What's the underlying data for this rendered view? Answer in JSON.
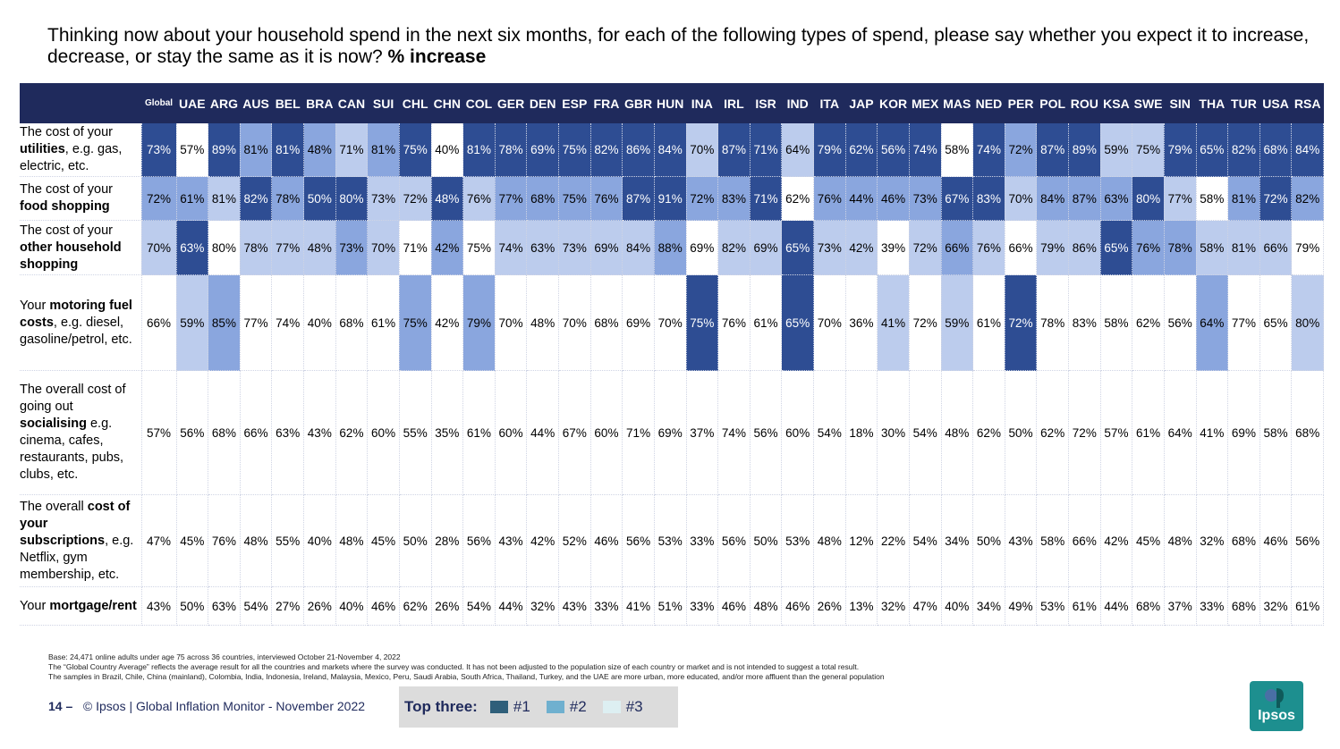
{
  "title": {
    "text": "Thinking now about your household spend in the next six months, for each of the following types of spend, please say whether you expect it to increase, decrease, or stay the same as it is now?",
    "emphasis": "% increase"
  },
  "colors": {
    "header_bg": "#1f2a5c",
    "rank1": "#2e4d93",
    "rank2": "#8aa6de",
    "rank3": "#bccced",
    "legend_rank1": "#2f5f7a",
    "legend_rank2": "#6fb0cf",
    "legend_rank3": "#ddeff2"
  },
  "columns": [
    "Global",
    "UAE",
    "ARG",
    "AUS",
    "BEL",
    "BRA",
    "CAN",
    "SUI",
    "CHL",
    "CHN",
    "COL",
    "GER",
    "DEN",
    "ESP",
    "FRA",
    "GBR",
    "HUN",
    "INA",
    "IRL",
    "ISR",
    "IND",
    "ITA",
    "JAP",
    "KOR",
    "MEX",
    "MAS",
    "NED",
    "PER",
    "POL",
    "ROU",
    "KSA",
    "SWE",
    "SIN",
    "THA",
    "TUR",
    "USA",
    "RSA"
  ],
  "rows": [
    {
      "id": "util",
      "label_parts": [
        {
          "t": "The cost of your ",
          "b": false
        },
        {
          "t": "utilities",
          "b": true
        },
        {
          "t": ", e.g. gas, electric, etc.",
          "b": false
        }
      ],
      "values": [
        "73%",
        "57%",
        "89%",
        "81%",
        "81%",
        "48%",
        "71%",
        "81%",
        "75%",
        "40%",
        "81%",
        "78%",
        "69%",
        "75%",
        "82%",
        "86%",
        "84%",
        "70%",
        "87%",
        "71%",
        "64%",
        "79%",
        "62%",
        "56%",
        "74%",
        "58%",
        "74%",
        "72%",
        "87%",
        "89%",
        "59%",
        "75%",
        "79%",
        "65%",
        "82%",
        "68%",
        "84%"
      ],
      "ranks": [
        1,
        0,
        1,
        2,
        1,
        2,
        3,
        2,
        1,
        0,
        1,
        1,
        1,
        1,
        1,
        1,
        1,
        3,
        1,
        1,
        3,
        1,
        1,
        1,
        1,
        0,
        1,
        2,
        1,
        1,
        3,
        3,
        1,
        1,
        1,
        1,
        1
      ]
    },
    {
      "id": "food",
      "label_parts": [
        {
          "t": "The cost of your ",
          "b": false
        },
        {
          "t": "food shopping",
          "b": true
        }
      ],
      "values": [
        "72%",
        "61%",
        "81%",
        "82%",
        "78%",
        "50%",
        "80%",
        "73%",
        "72%",
        "48%",
        "76%",
        "77%",
        "68%",
        "75%",
        "76%",
        "87%",
        "91%",
        "72%",
        "83%",
        "71%",
        "62%",
        "76%",
        "44%",
        "46%",
        "73%",
        "67%",
        "83%",
        "70%",
        "84%",
        "87%",
        "63%",
        "80%",
        "77%",
        "58%",
        "81%",
        "72%",
        "82%"
      ],
      "ranks": [
        2,
        2,
        3,
        1,
        2,
        1,
        1,
        3,
        3,
        1,
        3,
        2,
        2,
        2,
        2,
        1,
        1,
        2,
        2,
        1,
        0,
        2,
        2,
        2,
        2,
        1,
        1,
        3,
        2,
        2,
        2,
        1,
        3,
        0,
        2,
        1,
        2
      ]
    },
    {
      "id": "other",
      "label_parts": [
        {
          "t": "The cost of your ",
          "b": false
        },
        {
          "t": "other household shopping",
          "b": true
        }
      ],
      "values": [
        "70%",
        "63%",
        "80%",
        "78%",
        "77%",
        "48%",
        "73%",
        "70%",
        "71%",
        "42%",
        "75%",
        "74%",
        "63%",
        "73%",
        "69%",
        "84%",
        "88%",
        "69%",
        "82%",
        "69%",
        "65%",
        "73%",
        "42%",
        "39%",
        "72%",
        "66%",
        "76%",
        "66%",
        "79%",
        "86%",
        "65%",
        "76%",
        "78%",
        "58%",
        "81%",
        "66%",
        "79%"
      ],
      "ranks": [
        3,
        1,
        0,
        3,
        3,
        3,
        2,
        3,
        0,
        2,
        0,
        3,
        3,
        3,
        3,
        3,
        2,
        0,
        3,
        3,
        1,
        3,
        3,
        0,
        3,
        2,
        3,
        0,
        3,
        3,
        1,
        2,
        2,
        3,
        3,
        3,
        0
      ]
    },
    {
      "id": "motor",
      "label_parts": [
        {
          "t": "Your ",
          "b": false
        },
        {
          "t": "motoring fuel costs",
          "b": true
        },
        {
          "t": ", e.g. diesel, gasoline/petrol, etc.",
          "b": false
        }
      ],
      "values": [
        "66%",
        "59%",
        "85%",
        "77%",
        "74%",
        "40%",
        "68%",
        "61%",
        "75%",
        "42%",
        "79%",
        "70%",
        "48%",
        "70%",
        "68%",
        "69%",
        "70%",
        "75%",
        "76%",
        "61%",
        "65%",
        "70%",
        "36%",
        "41%",
        "72%",
        "59%",
        "61%",
        "72%",
        "78%",
        "83%",
        "58%",
        "62%",
        "56%",
        "64%",
        "77%",
        "65%",
        "80%"
      ],
      "ranks": [
        0,
        3,
        2,
        0,
        0,
        0,
        0,
        0,
        2,
        0,
        2,
        0,
        0,
        0,
        0,
        0,
        0,
        1,
        0,
        0,
        1,
        0,
        0,
        3,
        0,
        3,
        0,
        1,
        0,
        0,
        0,
        0,
        0,
        2,
        0,
        0,
        3
      ]
    },
    {
      "id": "social",
      "label_parts": [
        {
          "t": "The overall cost of going out ",
          "b": false
        },
        {
          "t": "socialising",
          "b": true
        },
        {
          "t": " e.g. cinema, cafes, restaurants, pubs, clubs, etc.",
          "b": false
        }
      ],
      "values": [
        "57%",
        "56%",
        "68%",
        "66%",
        "63%",
        "43%",
        "62%",
        "60%",
        "55%",
        "35%",
        "61%",
        "60%",
        "44%",
        "67%",
        "60%",
        "71%",
        "69%",
        "37%",
        "74%",
        "56%",
        "60%",
        "54%",
        "18%",
        "30%",
        "54%",
        "48%",
        "62%",
        "50%",
        "62%",
        "72%",
        "57%",
        "61%",
        "64%",
        "41%",
        "69%",
        "58%",
        "68%"
      ],
      "ranks": [
        0,
        0,
        0,
        0,
        0,
        0,
        0,
        0,
        0,
        0,
        0,
        0,
        0,
        0,
        0,
        0,
        0,
        0,
        0,
        0,
        0,
        0,
        0,
        0,
        0,
        0,
        0,
        0,
        0,
        0,
        0,
        0,
        0,
        0,
        0,
        0,
        0
      ]
    },
    {
      "id": "subs",
      "label_parts": [
        {
          "t": "The overall ",
          "b": false
        },
        {
          "t": "cost of your subscriptions",
          "b": true
        },
        {
          "t": ", e.g. Netflix, gym membership, etc.",
          "b": false
        }
      ],
      "values": [
        "47%",
        "45%",
        "76%",
        "48%",
        "55%",
        "40%",
        "48%",
        "45%",
        "50%",
        "28%",
        "56%",
        "43%",
        "42%",
        "52%",
        "46%",
        "56%",
        "53%",
        "33%",
        "56%",
        "50%",
        "53%",
        "48%",
        "12%",
        "22%",
        "54%",
        "34%",
        "50%",
        "43%",
        "58%",
        "66%",
        "42%",
        "45%",
        "48%",
        "32%",
        "68%",
        "46%",
        "56%"
      ],
      "ranks": [
        0,
        0,
        0,
        0,
        0,
        0,
        0,
        0,
        0,
        0,
        0,
        0,
        0,
        0,
        0,
        0,
        0,
        0,
        0,
        0,
        0,
        0,
        0,
        0,
        0,
        0,
        0,
        0,
        0,
        0,
        0,
        0,
        0,
        0,
        0,
        0,
        0
      ]
    },
    {
      "id": "mort",
      "label_parts": [
        {
          "t": "Your ",
          "b": false
        },
        {
          "t": "mortgage/rent",
          "b": true
        }
      ],
      "values": [
        "43%",
        "50%",
        "63%",
        "54%",
        "27%",
        "26%",
        "40%",
        "46%",
        "62%",
        "26%",
        "54%",
        "44%",
        "32%",
        "43%",
        "33%",
        "41%",
        "51%",
        "33%",
        "46%",
        "48%",
        "46%",
        "26%",
        "13%",
        "32%",
        "47%",
        "40%",
        "34%",
        "49%",
        "53%",
        "61%",
        "44%",
        "68%",
        "37%",
        "33%",
        "68%",
        "32%",
        "61%"
      ],
      "ranks": [
        0,
        0,
        0,
        0,
        0,
        0,
        0,
        0,
        0,
        0,
        0,
        0,
        0,
        0,
        0,
        0,
        0,
        0,
        0,
        0,
        0,
        0,
        0,
        0,
        0,
        0,
        0,
        0,
        0,
        0,
        0,
        0,
        0,
        0,
        0,
        0,
        0
      ]
    }
  ],
  "footnotes": [
    "Base: 24,471 online adults under age 75 across 36 countries, interviewed October 21-November 4, 2022",
    "The “Global Country Average” reflects the average result for all the countries and markets where the survey was conducted. It has not been adjusted to the population size of each country or market and is not intended to suggest a total result.",
    "The samples in Brazil, Chile, China (mainland), Colombia, India, Indonesia, Ireland, Malaysia, Mexico, Peru, Saudi Arabia, South Africa, Thailand, Turkey, and the UAE are more urban, more educated, and/or more affluent than the general population"
  ],
  "footer": {
    "page": "14 –",
    "text": "© Ipsos | Global Inflation Monitor - November 2022"
  },
  "legend": {
    "title": "Top three:",
    "items": [
      "#1",
      "#2",
      "#3"
    ]
  },
  "logo": {
    "text": "Ipsos"
  }
}
